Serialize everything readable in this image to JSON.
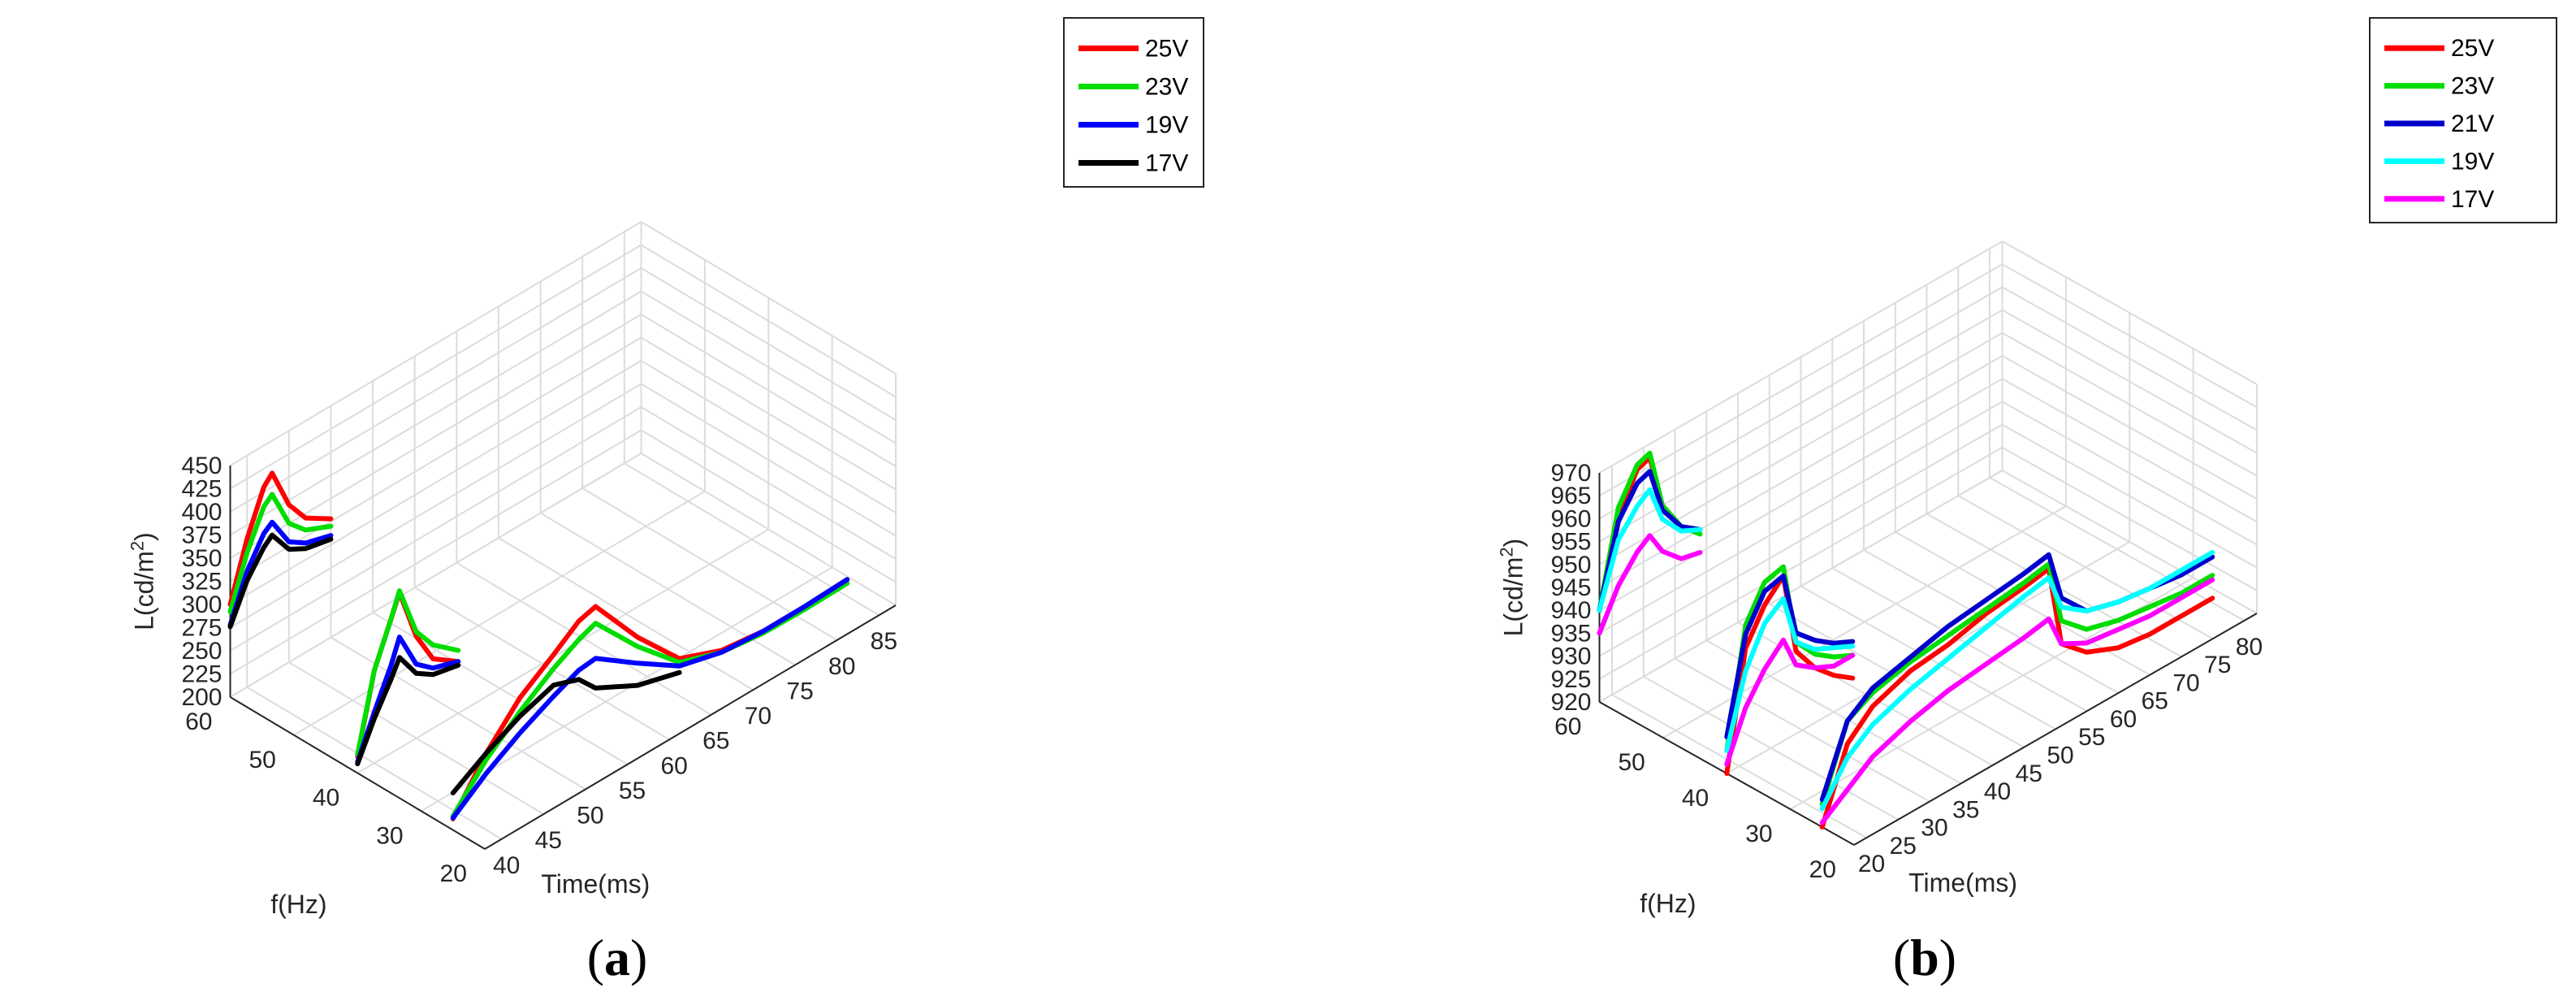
{
  "chart_data": [
    {
      "type": "line",
      "panel_label": "a",
      "zlabel": "L(cd/m",
      "zlabel_sup": "2",
      "zlabel_close": ")",
      "ylabel": "f(Hz)",
      "xlabel": "Time(ms)",
      "z_ticks": [
        "200",
        "225",
        "250",
        "275",
        "300",
        "325",
        "350",
        "375",
        "400",
        "425",
        "450"
      ],
      "zlim": [
        200,
        450
      ],
      "y_ticks": [
        "20",
        "30",
        "40",
        "50",
        "60"
      ],
      "ylim": [
        20,
        60
      ],
      "x_ticks": [
        "40",
        "45",
        "50",
        "55",
        "60",
        "65",
        "70",
        "75",
        "80",
        "85"
      ],
      "xlim": [
        38,
        87
      ],
      "legend": [
        "25V",
        "23V",
        "19V",
        "17V"
      ],
      "colors": [
        "#ff0000",
        "#00dd00",
        "#0000ff",
        "#000000"
      ],
      "series": [
        {
          "name": "25V",
          "segments": [
            {
              "f": 60,
              "t": [
                38,
                40,
                42,
                43,
                45,
                47,
                50
              ],
              "L": [
                300,
                360,
                405,
                415,
                370,
                345,
                328
              ]
            },
            {
              "f": 40,
              "t": [
                38,
                40,
                42,
                43,
                45,
                47,
                50
              ],
              "L": [
                218,
                300,
                345,
                368,
                310,
                275,
                256
              ]
            },
            {
              "f": 25,
              "t": [
                38,
                42,
                46,
                50,
                53,
                55,
                60,
                65,
                70,
                75,
                80,
                85
              ],
              "L": [
                212,
                262,
                300,
                325,
                345,
                350,
                290,
                240,
                222,
                216,
                216,
                218
              ]
            }
          ]
        },
        {
          "name": "23V",
          "segments": [
            {
              "f": 60,
              "t": [
                38,
                40,
                42,
                43,
                45,
                47,
                50
              ],
              "L": [
                292,
                345,
                384,
                392,
                350,
                332,
                320
              ]
            },
            {
              "f": 40,
              "t": [
                38,
                40,
                42,
                43,
                45,
                47,
                50
              ],
              "L": [
                220,
                300,
                345,
                370,
                315,
                290,
                268
              ]
            },
            {
              "f": 25,
              "t": [
                38,
                42,
                46,
                50,
                53,
                55,
                60,
                65,
                70,
                75,
                80,
                85
              ],
              "L": [
                215,
                255,
                285,
                310,
                325,
                332,
                280,
                236,
                220,
                214,
                213,
                214
              ]
            }
          ]
        },
        {
          "name": "19V",
          "segments": [
            {
              "f": 60,
              "t": [
                38,
                40,
                42,
                43,
                45,
                47,
                50
              ],
              "L": [
                278,
                325,
                355,
                362,
                330,
                318,
                310
              ]
            },
            {
              "f": 40,
              "t": [
                38,
                40,
                42,
                43,
                45,
                47,
                50
              ],
              "L": [
                212,
                255,
                295,
                320,
                280,
                265,
                256
              ]
            },
            {
              "f": 25,
              "t": [
                38,
                42,
                46,
                50,
                53,
                55,
                60,
                65,
                70,
                75,
                80,
                85
              ],
              "L": [
                213,
                240,
                262,
                280,
                292,
                294,
                262,
                232,
                220,
                216,
                216,
                218
              ]
            }
          ]
        },
        {
          "name": "17V",
          "segments": [
            {
              "f": 60,
              "t": [
                38,
                40,
                42,
                43,
                45,
                47,
                50
              ],
              "L": [
                276,
                315,
                340,
                348,
                322,
                312,
                306
              ]
            },
            {
              "f": 40,
              "t": [
                38,
                40,
                42,
                43,
                45,
                47,
                50
              ],
              "L": [
                210,
                248,
                280,
                298,
                270,
                258,
                252
              ]
            },
            {
              "f": 25,
              "t": [
                38,
                42,
                46,
                50,
                53,
                55,
                60,
                65
              ],
              "L": [
                240,
                262,
                280,
                292,
                282,
                262,
                238,
                225
              ]
            }
          ]
        }
      ]
    },
    {
      "type": "line",
      "panel_label": "b",
      "zlabel": "L(cd/m",
      "zlabel_sup": "2",
      "zlabel_close": ")",
      "ylabel": "f(Hz)",
      "xlabel": "Time(ms)",
      "z_ticks": [
        "920",
        "925",
        "930",
        "935",
        "940",
        "945",
        "950",
        "955",
        "960",
        "965",
        "970"
      ],
      "zlim": [
        920,
        970
      ],
      "y_ticks": [
        "20",
        "30",
        "40",
        "50",
        "60"
      ],
      "ylim": [
        20,
        60
      ],
      "x_ticks": [
        "20",
        "25",
        "30",
        "35",
        "40",
        "45",
        "50",
        "55",
        "60",
        "65",
        "70",
        "75",
        "80"
      ],
      "xlim": [
        18,
        82
      ],
      "legend": [
        "25V",
        "23V",
        "21V",
        "19V",
        "17V"
      ],
      "colors": [
        "#ff0000",
        "#00dd00",
        "#0000cc",
        "#00ffff",
        "#ff00ff"
      ],
      "series": [
        {
          "name": "25V",
          "segments": [
            {
              "f": 60,
              "t": [
                18,
                21,
                24,
                26,
                28,
                31,
                34
              ],
              "L": [
                940,
                958,
                966,
                967,
                955,
                948,
                945
              ]
            },
            {
              "f": 40,
              "t": [
                18,
                21,
                24,
                27,
                29,
                32,
                35,
                38
              ],
              "L": [
                920,
                945,
                952,
                956,
                938,
                932,
                928,
                925
              ]
            },
            {
              "f": 25,
              "t": [
                18,
                22,
                26,
                32,
                38,
                44,
                50,
                54,
                56,
                60,
                65,
                70,
                75,
                80
              ],
              "L": [
                920,
                935,
                940,
                943,
                944,
                946,
                947,
                948,
                930,
                925,
                922,
                921,
                921,
                921
              ]
            }
          ]
        },
        {
          "name": "23V",
          "segments": [
            {
              "f": 60,
              "t": [
                18,
                21,
                24,
                26,
                28,
                31,
                34
              ],
              "L": [
                940,
                960,
                967,
                968,
                955,
                948,
                944
              ]
            },
            {
              "f": 40,
              "t": [
                18,
                21,
                24,
                27,
                29,
                32,
                35,
                38
              ],
              "L": [
                925,
                950,
                957,
                958,
                940,
                935,
                932,
                930
              ]
            },
            {
              "f": 25,
              "t": [
                18,
                22,
                26,
                32,
                38,
                44,
                50,
                54,
                56,
                60,
                65,
                70,
                75,
                80
              ],
              "L": [
                925,
                940,
                943,
                945,
                946,
                947,
                948,
                949,
                935,
                930,
                928,
                927,
                926,
                926
              ]
            }
          ]
        },
        {
          "name": "21V",
          "segments": [
            {
              "f": 60,
              "t": [
                18,
                21,
                24,
                26,
                28,
                31,
                34
              ],
              "L": [
                940,
                957,
                963,
                964,
                954,
                948,
                945
              ]
            },
            {
              "f": 40,
              "t": [
                18,
                21,
                24,
                27,
                29,
                32,
                35,
                38
              ],
              "L": [
                928,
                948,
                955,
                956,
                942,
                938,
                935,
                933
              ]
            },
            {
              "f": 25,
              "t": [
                18,
                22,
                26,
                32,
                38,
                44,
                50,
                54,
                56,
                60,
                65,
                70,
                75,
                80
              ],
              "L": [
                926,
                940,
                944,
                946,
                948,
                949,
                950,
                951,
                940,
                934,
                932,
                931,
                930,
                930
              ]
            }
          ]
        },
        {
          "name": "19V",
          "segments": [
            {
              "f": 60,
              "t": [
                18,
                21,
                24,
                26,
                28,
                31,
                34
              ],
              "L": [
                940,
                953,
                958,
                960,
                952,
                947,
                945
              ]
            },
            {
              "f": 40,
              "t": [
                18,
                21,
                24,
                27,
                29,
                32,
                35,
                38
              ],
              "L": [
                925,
                940,
                948,
                951,
                940,
                936,
                934,
                932
              ]
            },
            {
              "f": 25,
              "t": [
                18,
                22,
                26,
                32,
                38,
                44,
                50,
                54,
                56,
                60,
                65,
                70,
                75,
                80
              ],
              "L": [
                924,
                932,
                936,
                939,
                941,
                943,
                945,
                946,
                938,
                934,
                932,
                931,
                931,
                931
              ]
            }
          ]
        },
        {
          "name": "17V",
          "segments": [
            {
              "f": 60,
              "t": [
                18,
                21,
                24,
                26,
                28,
                31,
                34
              ],
              "L": [
                935,
                943,
                948,
                950,
                945,
                941,
                940
              ]
            },
            {
              "f": 40,
              "t": [
                18,
                21,
                24,
                27,
                29,
                32,
                35,
                38
              ],
              "L": [
                922,
                932,
                938,
                942,
                935,
                932,
                930,
                930
              ]
            },
            {
              "f": 25,
              "t": [
                18,
                22,
                26,
                32,
                38,
                44,
                50,
                54,
                56,
                60,
                65,
                70,
                75,
                80
              ],
              "L": [
                921,
                925,
                929,
                932,
                934,
                935,
                936,
                937,
                930,
                927,
                926,
                925,
                925,
                925
              ]
            }
          ]
        }
      ]
    }
  ]
}
